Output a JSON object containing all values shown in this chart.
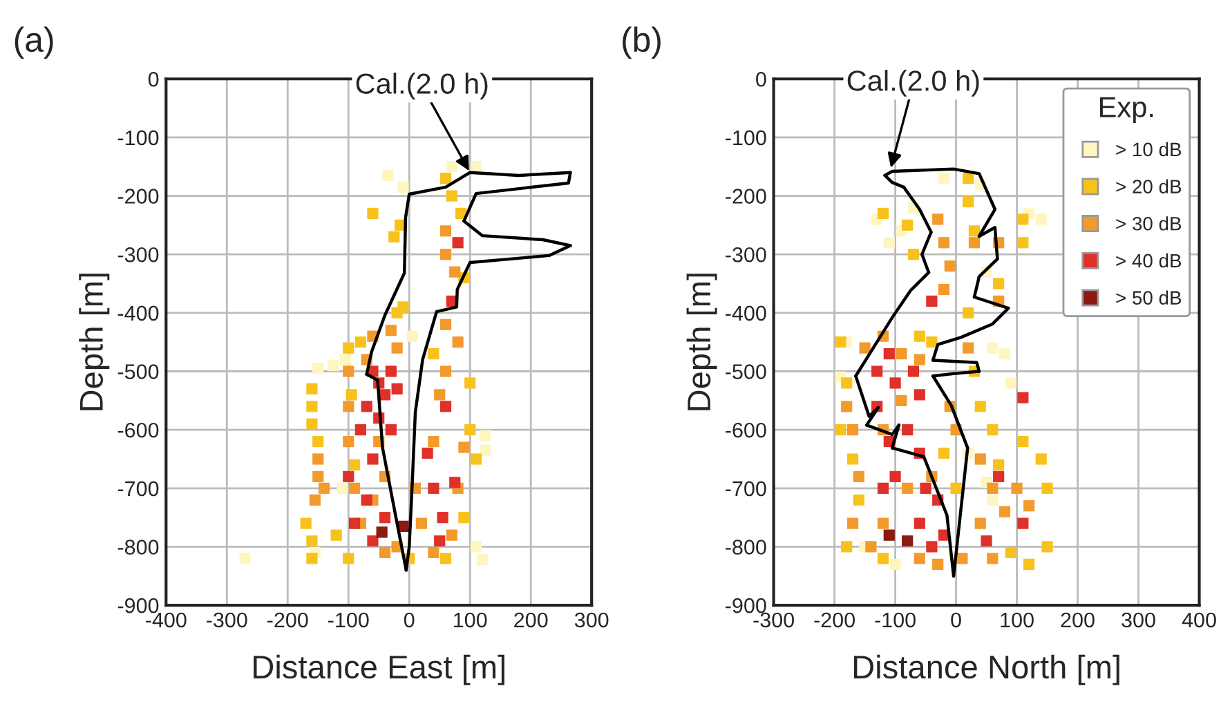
{
  "chart_data": [
    {
      "type": "scatter",
      "title": "(a)",
      "xlabel": "Distance East [m]",
      "ylabel": "Depth [m]",
      "marker": "square",
      "grid": true,
      "legend": false,
      "xlim": [
        -400,
        300
      ],
      "xticks": [
        -400,
        -300,
        -200,
        -100,
        0,
        100,
        200,
        300
      ],
      "ylim": [
        -900,
        0
      ],
      "yticks": [
        -900,
        -800,
        -700,
        -600,
        -500,
        -400,
        -300,
        -200,
        -100,
        0
      ],
      "annotations": [
        {
          "text": "Cal.(2.0 h)",
          "x": 100,
          "y": -160
        }
      ],
      "series": [
        {
          "color": "#fff5c0",
          "x": [
            -270,
            -150,
            -125,
            -35,
            -10,
            70,
            110,
            125,
            125,
            110,
            120,
            -155,
            -105,
            5,
            -110
          ],
          "values": [
            -820,
            -495,
            -490,
            -165,
            -185,
            -150,
            -150,
            -610,
            -635,
            -800,
            -822,
            -810,
            -480,
            -440,
            -700
          ]
        },
        {
          "color": "#f8c21c",
          "x": [
            -160,
            -160,
            -160,
            -150,
            -170,
            -160,
            -160,
            -120,
            -100,
            -80,
            -20,
            -10,
            -25,
            -15,
            -60,
            60,
            70,
            85,
            90,
            100,
            100,
            110,
            90,
            -100,
            0,
            60,
            40,
            -95,
            -90
          ],
          "values": [
            -530,
            -560,
            -590,
            -620,
            -760,
            -790,
            -820,
            -780,
            -460,
            -450,
            -400,
            -390,
            -270,
            -250,
            -230,
            -170,
            -200,
            -230,
            -340,
            -520,
            -600,
            -650,
            -750,
            -820,
            -820,
            -820,
            -470,
            -540,
            -660
          ]
        },
        {
          "color": "#f39a2c",
          "x": [
            -150,
            -150,
            -155,
            -140,
            -100,
            -100,
            -100,
            -90,
            -80,
            -70,
            -60,
            -30,
            -20,
            -50,
            -40,
            -60,
            -20,
            20,
            10,
            40,
            50,
            60,
            60,
            60,
            75,
            60,
            80,
            80,
            70,
            40,
            -40,
            90
          ],
          "values": [
            -650,
            -680,
            -720,
            -700,
            -500,
            -560,
            -620,
            -700,
            -760,
            -480,
            -440,
            -430,
            -460,
            -620,
            -680,
            -720,
            -800,
            -760,
            -700,
            -620,
            -540,
            -500,
            -260,
            -300,
            -330,
            -420,
            -450,
            -700,
            -780,
            -810,
            -810,
            -630
          ]
        },
        {
          "color": "#e0302a",
          "x": [
            -60,
            -50,
            -40,
            -30,
            -20,
            -70,
            -50,
            -30,
            -60,
            -80,
            -100,
            -70,
            -90,
            -40,
            -60,
            30,
            40,
            55,
            50,
            75,
            70,
            80,
            60
          ],
          "values": [
            -500,
            -520,
            -540,
            -500,
            -530,
            -560,
            -580,
            -600,
            -650,
            -600,
            -680,
            -720,
            -760,
            -750,
            -790,
            -640,
            -700,
            -750,
            -790,
            -690,
            -380,
            -280,
            -560
          ]
        },
        {
          "color": "#8b1a10",
          "x": [
            -45,
            -10
          ],
          "values": [
            -775,
            -765
          ]
        },
        {
          "type": "line",
          "color": "#000000",
          "marker": "none",
          "x": [
            -5,
            -20,
            -44,
            -52,
            -70
          ],
          "values": [
            -840,
            -760,
            -630,
            -515,
            -505
          ]
        },
        {
          "type": "line",
          "color": "#000000",
          "marker": "none",
          "x": [
            -70,
            -62,
            -40,
            -8,
            -6,
            0,
            60,
            100,
            180,
            265
          ],
          "values": [
            -505,
            -467,
            -404,
            -332,
            -237,
            -197,
            -185,
            -160,
            -165,
            -160
          ]
        },
        {
          "type": "line",
          "color": "#000000",
          "marker": "none",
          "x": [
            265,
            262,
            110,
            90
          ],
          "values": [
            -160,
            -178,
            -196,
            -243
          ]
        },
        {
          "type": "line",
          "color": "#000000",
          "marker": "none",
          "x": [
            90,
            120,
            220,
            265
          ],
          "values": [
            -243,
            -268,
            -275,
            -285
          ]
        },
        {
          "type": "line",
          "color": "#000000",
          "marker": "none",
          "x": [
            265,
            230,
            100,
            79,
            78,
            45,
            22,
            10,
            5,
            0,
            -5
          ],
          "values": [
            -285,
            -302,
            -314,
            -360,
            -390,
            -398,
            -480,
            -570,
            -690,
            -800,
            -840
          ]
        }
      ]
    },
    {
      "type": "scatter",
      "title": "(b)",
      "xlabel": "Distance North [m]",
      "ylabel": "Depth [m]",
      "marker": "square",
      "grid": true,
      "legend": "top right",
      "legend_title": "Exp.",
      "xlim": [
        -300,
        400
      ],
      "xticks": [
        -300,
        -200,
        -100,
        0,
        100,
        200,
        300,
        400
      ],
      "ylim": [
        -900,
        0
      ],
      "yticks": [
        -900,
        -800,
        -700,
        -600,
        -500,
        -400,
        -300,
        -200,
        -100,
        0
      ],
      "annotations": [
        {
          "text": "Cal.(2.0 h)",
          "x": -108,
          "y": -155
        }
      ],
      "series": [
        {
          "name": "> 10 dB",
          "color": "#fff5c0",
          "x": [
            -20,
            -70,
            -90,
            -130,
            40,
            120,
            140,
            50,
            60,
            80,
            90,
            -180,
            -190,
            20,
            50,
            60,
            -100,
            -150,
            -110
          ],
          "values": [
            -170,
            -220,
            -260,
            -240,
            -180,
            -230,
            -240,
            -330,
            -460,
            -470,
            -520,
            -450,
            -510,
            -640,
            -690,
            -720,
            -830,
            -800,
            -280
          ]
        },
        {
          "name": "> 20 dB",
          "color": "#f8c21c",
          "x": [
            -120,
            -80,
            -70,
            20,
            20,
            30,
            20,
            70,
            110,
            110,
            -190,
            -180,
            -190,
            -170,
            -160,
            -180,
            -120,
            -60,
            40,
            60,
            70,
            110,
            140,
            150,
            150,
            120,
            90,
            0,
            -20,
            30,
            -40
          ],
          "values": [
            -230,
            -250,
            -300,
            -170,
            -210,
            -260,
            -400,
            -350,
            -240,
            -280,
            -450,
            -520,
            -600,
            -650,
            -720,
            -800,
            -820,
            -440,
            -560,
            -600,
            -660,
            -620,
            -650,
            -700,
            -800,
            -830,
            -810,
            -700,
            -640,
            -500,
            -450
          ]
        },
        {
          "name": "> 30 dB",
          "color": "#f39a2c",
          "x": [
            -30,
            -20,
            -10,
            -20,
            30,
            70,
            70,
            -150,
            -120,
            -90,
            -60,
            -180,
            -170,
            -160,
            -170,
            -140,
            -120,
            -80,
            -40,
            -10,
            0,
            40,
            60,
            40,
            80,
            100,
            120,
            60,
            10,
            -30,
            -60,
            -120,
            -90,
            20
          ],
          "values": [
            -240,
            -280,
            -320,
            -360,
            -280,
            -280,
            -380,
            -460,
            -440,
            -470,
            -480,
            -560,
            -600,
            -680,
            -760,
            -800,
            -760,
            -700,
            -680,
            -560,
            -600,
            -650,
            -700,
            -760,
            -740,
            -700,
            -730,
            -820,
            -820,
            -830,
            -820,
            -600,
            -550,
            -460
          ]
        },
        {
          "name": "> 40 dB",
          "color": "#e0302a",
          "x": [
            -40,
            -130,
            -110,
            -100,
            -70,
            -60,
            -130,
            -110,
            -80,
            -100,
            -60,
            -50,
            -30,
            -60,
            -120,
            -20,
            -40,
            110,
            70,
            110,
            50
          ],
          "values": [
            -380,
            -500,
            -470,
            -520,
            -500,
            -540,
            -560,
            -620,
            -600,
            -680,
            -640,
            -700,
            -720,
            -760,
            -700,
            -780,
            -800,
            -545,
            -680,
            -760,
            -790
          ]
        },
        {
          "name": "> 50 dB",
          "color": "#8b1a10",
          "x": [
            -110,
            -80
          ],
          "values": [
            -780,
            -790
          ]
        },
        {
          "type": "line",
          "color": "#000000",
          "marker": "none",
          "x": [
            -4,
            19
          ],
          "values": [
            -850,
            -631
          ]
        },
        {
          "type": "line",
          "color": "#000000",
          "marker": "none",
          "x": [
            19,
            -8,
            -38
          ],
          "values": [
            -631,
            -558,
            -508
          ]
        },
        {
          "type": "line",
          "color": "#000000",
          "marker": "none",
          "x": [
            -38,
            -4,
            38
          ],
          "values": [
            -508,
            -504,
            -500
          ]
        },
        {
          "type": "line",
          "color": "#000000",
          "marker": "none",
          "x": [
            38,
            34,
            -38
          ],
          "values": [
            -500,
            -485,
            -481
          ]
        },
        {
          "type": "line",
          "color": "#000000",
          "marker": "none",
          "x": [
            -38,
            -30,
            8,
            60,
            86
          ],
          "values": [
            -481,
            -454,
            -442,
            -419,
            -392
          ]
        },
        {
          "type": "line",
          "color": "#000000",
          "marker": "none",
          "x": [
            86,
            30
          ],
          "values": [
            -392,
            -373
          ]
        },
        {
          "type": "line",
          "color": "#000000",
          "marker": "none",
          "x": [
            30,
            38,
            68
          ],
          "values": [
            -373,
            -338,
            -308
          ]
        },
        {
          "type": "line",
          "color": "#000000",
          "marker": "none",
          "x": [
            68,
            64,
            38
          ],
          "values": [
            -308,
            -254,
            -269
          ]
        },
        {
          "type": "line",
          "color": "#000000",
          "marker": "none",
          "x": [
            38,
            64
          ],
          "values": [
            -269,
            -223
          ]
        },
        {
          "type": "line",
          "color": "#000000",
          "marker": "none",
          "x": [
            64,
            38,
            -4,
            -105,
            -117
          ],
          "values": [
            -223,
            -162,
            -154,
            -158,
            -165
          ]
        },
        {
          "type": "line",
          "color": "#000000",
          "marker": "none",
          "x": [
            -117,
            -105,
            -86,
            -60,
            -41
          ],
          "values": [
            -165,
            -177,
            -185,
            -223,
            -262
          ]
        },
        {
          "type": "line",
          "color": "#000000",
          "marker": "none",
          "x": [
            -41,
            -56
          ],
          "values": [
            -262,
            -300
          ]
        },
        {
          "type": "line",
          "color": "#000000",
          "marker": "none",
          "x": [
            -56,
            -45
          ],
          "values": [
            -300,
            -331
          ]
        },
        {
          "type": "line",
          "color": "#000000",
          "marker": "none",
          "x": [
            -45,
            -75,
            -105,
            -165
          ],
          "values": [
            -331,
            -362,
            -408,
            -508
          ]
        },
        {
          "type": "line",
          "color": "#000000",
          "marker": "none",
          "x": [
            -165,
            -143,
            -128
          ],
          "values": [
            -508,
            -577,
            -562
          ]
        },
        {
          "type": "line",
          "color": "#000000",
          "marker": "none",
          "x": [
            -128,
            -147
          ],
          "values": [
            -562,
            -592
          ]
        },
        {
          "type": "line",
          "color": "#000000",
          "marker": "none",
          "x": [
            -147,
            -105,
            -94
          ],
          "values": [
            -592,
            -608,
            -592
          ]
        },
        {
          "type": "line",
          "color": "#000000",
          "marker": "none",
          "x": [
            -94,
            -105
          ],
          "values": [
            -592,
            -631
          ]
        },
        {
          "type": "line",
          "color": "#000000",
          "marker": "none",
          "x": [
            -105,
            -53,
            -15,
            -4
          ],
          "values": [
            -631,
            -646,
            -746,
            -850
          ]
        }
      ]
    }
  ]
}
